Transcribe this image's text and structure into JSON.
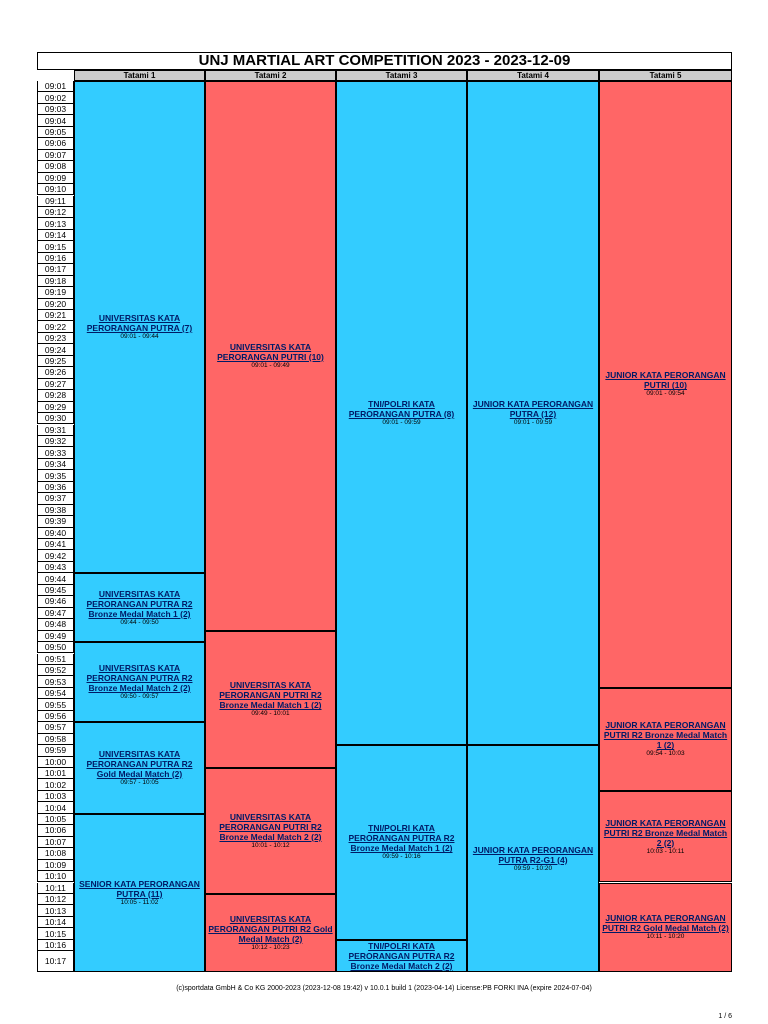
{
  "title": "UNJ MARTIAL ART COMPETITION 2023 - 2023-12-09",
  "columns": [
    "Tatami 1",
    "Tatami 2",
    "Tatami 3",
    "Tatami 4",
    "Tatami 5"
  ],
  "times": [
    "09:01",
    "09:02",
    "09:03",
    "09:04",
    "09:05",
    "09:06",
    "09:07",
    "09:08",
    "09:09",
    "09:10",
    "09:11",
    "09:12",
    "09:13",
    "09:14",
    "09:15",
    "09:16",
    "09:17",
    "09:18",
    "09:19",
    "09:20",
    "09:21",
    "09:22",
    "09:23",
    "09:24",
    "09:25",
    "09:26",
    "09:27",
    "09:28",
    "09:29",
    "09:30",
    "09:31",
    "09:32",
    "09:33",
    "09:34",
    "09:35",
    "09:36",
    "09:37",
    "09:38",
    "09:39",
    "09:40",
    "09:41",
    "09:42",
    "09:43",
    "09:44",
    "09:45",
    "09:46",
    "09:47",
    "09:48",
    "09:49",
    "09:50",
    "09:51",
    "09:52",
    "09:53",
    "09:54",
    "09:55",
    "09:56",
    "09:57",
    "09:58",
    "09:59",
    "10:00",
    "10:01",
    "10:02",
    "10:03",
    "10:04",
    "10:05",
    "10:06",
    "10:07",
    "10:08",
    "10:09",
    "10:10",
    "10:11",
    "10:12",
    "10:13",
    "10:14",
    "10:15",
    "10:16",
    "10:17"
  ],
  "tatami": [
    {
      "events": [
        {
          "name": "UNIVERSITAS KATA PERORANGAN PUTRA (7)",
          "time": "09:01 - 09:44"
        },
        {
          "name": "UNIVERSITAS KATA PERORANGAN PUTRA R2 Bronze Medal Match 1 (2)",
          "time": "09:44 - 09:50"
        },
        {
          "name": "UNIVERSITAS KATA PERORANGAN PUTRA R2 Bronze Medal Match 2 (2)",
          "time": "09:50 - 09:57"
        },
        {
          "name": "UNIVERSITAS KATA PERORANGAN PUTRA R2 Gold Medal Match (2)",
          "time": "09:57 - 10:05"
        },
        {
          "name": "SENIOR KATA PERORANGAN PUTRA (11)",
          "time": "10:05 - 11:02"
        }
      ]
    },
    {
      "events": [
        {
          "name": "UNIVERSITAS KATA PERORANGAN PUTRI (10)",
          "time": "09:01 - 09:49"
        },
        {
          "name": "UNIVERSITAS KATA PERORANGAN PUTRI R2 Bronze Medal Match 1 (2)",
          "time": "09:49 - 10:01"
        },
        {
          "name": "UNIVERSITAS KATA PERORANGAN PUTRI R2 Bronze Medal Match 2 (2)",
          "time": "10:01 - 10:12"
        },
        {
          "name": "UNIVERSITAS KATA PERORANGAN PUTRI R2 Gold Medal Match (2)",
          "time": "10:12 - 10:23"
        }
      ]
    },
    {
      "events": [
        {
          "name": "TNI/POLRI KATA PERORANGAN PUTRA (8)",
          "time": "09:01 - 09:59"
        },
        {
          "name": "TNI/POLRI KATA PERORANGAN PUTRA R2 Bronze Medal Match 1 (2)",
          "time": "09:59 - 10:16"
        },
        {
          "name": "TNI/POLRI KATA PERORANGAN PUTRA R2 Bronze Medal Match 2 (2)"
        }
      ]
    },
    {
      "events": [
        {
          "name": "JUNIOR KATA PERORANGAN PUTRA (12)",
          "time": "09:01 - 09:59"
        },
        {
          "name": "JUNIOR KATA PERORANGAN PUTRA R2-G1 (4)",
          "time": "09:59 - 10:20"
        }
      ]
    },
    {
      "events": [
        {
          "name": "JUNIOR KATA PERORANGAN PUTRI (10)",
          "time": "09:01 - 09:54"
        },
        {
          "name": "JUNIOR KATA PERORANGAN PUTRI R2 Bronze Medal Match 1 (2)",
          "time": "09:54 - 10:03"
        },
        {
          "name": "JUNIOR KATA PERORANGAN PUTRI R2 Bronze Medal Match 2 (2)",
          "time": "10:03 - 10:11"
        },
        {
          "name": "JUNIOR KATA PERORANGAN PUTRI R2 Gold Medal Match (2)",
          "time": "10:11 - 10:20"
        }
      ]
    }
  ],
  "footer": "(c)sportdata GmbH & Co KG 2000-2023 (2023-12-08 19:42) v 10.0.1 build 1 (2023-04-14) License:PB FORKI INA (expire 2024-07-04)",
  "page": "1 / 6"
}
